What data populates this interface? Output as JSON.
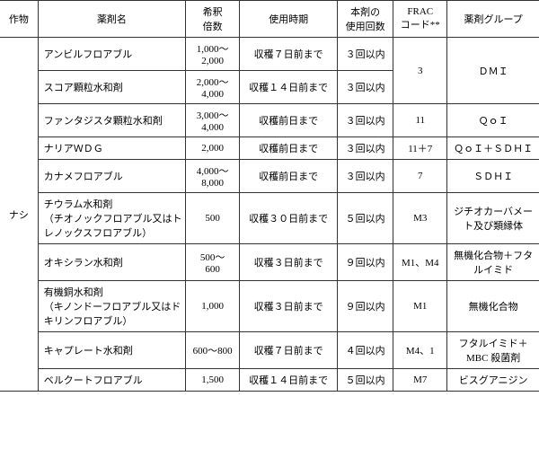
{
  "headers": {
    "crop": "作物",
    "agent": "薬剤名",
    "dilution": "希釈\n倍数",
    "timing": "使用時期",
    "count": "本剤の\n使用回数",
    "frac": "FRAC\nコード**",
    "group": "薬剤グループ"
  },
  "crop_label": "ナシ",
  "rows": [
    {
      "name": "アンビルフロアブル",
      "dilution": "1,000～\n2,000",
      "timing": "収穫７日前まで",
      "count": "３回以内",
      "frac": "3",
      "group": "ＤＭＩ"
    },
    {
      "name": "スコア顆粒水和剤",
      "dilution": "2,000～\n4,000",
      "timing": "収穫１４日前まで",
      "count": "３回以内",
      "frac": "",
      "group": ""
    },
    {
      "name": "ファンタジスタ顆粒水和剤",
      "dilution": "3,000～\n4,000",
      "timing": "収穫前日まで",
      "count": "３回以内",
      "frac": "11",
      "group": "ＱｏＩ"
    },
    {
      "name": "ナリアＷＤＧ",
      "dilution": "2,000",
      "timing": "収穫前日まで",
      "count": "３回以内",
      "frac": "11＋7",
      "group": "ＱｏＩ＋ＳＤＨＩ"
    },
    {
      "name": "カナメフロアブル",
      "dilution": "4,000～\n8,000",
      "timing": "収穫前日まで",
      "count": "３回以内",
      "frac": "7",
      "group": "ＳＤＨＩ"
    },
    {
      "name": "チウラム水和剤\n（チオノックフロアブル又はトレノックスフロアブル）",
      "dilution": "500",
      "timing": "収穫３０日前まで",
      "count": "５回以内",
      "frac": "M3",
      "group": "ジチオカーバメート及び類縁体"
    },
    {
      "name": "オキシラン水和剤",
      "dilution": "500～\n600",
      "timing": "収穫３日前まで",
      "count": "９回以内",
      "frac": "M1、M4",
      "group": "無機化合物＋フタルイミド"
    },
    {
      "name": "有機銅水和剤\n（キノンドーフロアブル又はドキリンフロアブル）",
      "dilution": "1,000",
      "timing": "収穫３日前まで",
      "count": "９回以内",
      "frac": "M1",
      "group": "無機化合物"
    },
    {
      "name": "キャプレート水和剤",
      "dilution": "600～800",
      "timing": "収穫７日前まで",
      "count": "４回以内",
      "frac": "M4、1",
      "group": "フタルイミド＋MBC 殺菌剤"
    },
    {
      "name": "ベルクートフロアブル",
      "dilution": "1,500",
      "timing": "収穫１４日前まで",
      "count": "５回以内",
      "frac": "M7",
      "group": "ビスグアニジン"
    }
  ],
  "col_widths": [
    "38px",
    "148px",
    "54px",
    "98px",
    "56px",
    "54px",
    "92px"
  ]
}
